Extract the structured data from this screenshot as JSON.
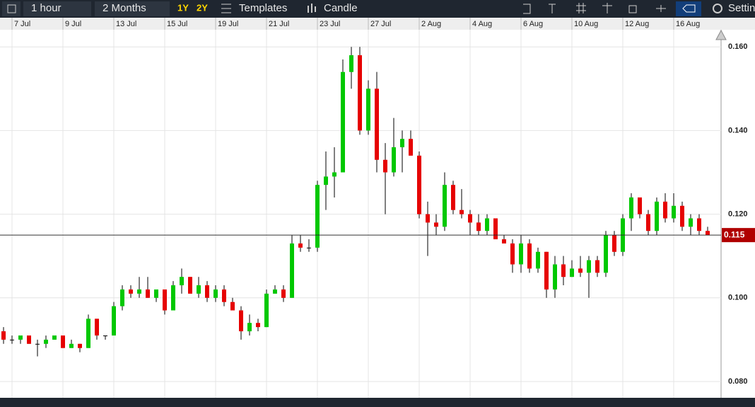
{
  "toolbar": {
    "items": [
      "1 hour",
      "2 Months",
      "1Y",
      "2Y",
      "Templates",
      "Candle",
      "Settin"
    ]
  },
  "chart_data": {
    "type": "candlestick",
    "categories": [
      null,
      "7 Jul",
      null,
      null,
      null,
      null,
      null,
      "9 Jul",
      null,
      null,
      null,
      null,
      null,
      "13 Jul",
      null,
      null,
      null,
      null,
      null,
      "15 Jul",
      null,
      null,
      null,
      null,
      null,
      "19 Jul",
      null,
      null,
      null,
      null,
      null,
      "21 Jul",
      null,
      null,
      null,
      null,
      null,
      "23 Jul",
      null,
      null,
      null,
      null,
      null,
      "27 Jul",
      null,
      null,
      null,
      null,
      null,
      "2 Aug",
      null,
      null,
      null,
      null,
      null,
      "4 Aug",
      null,
      null,
      null,
      null,
      null,
      "6 Aug",
      null,
      null,
      null,
      null,
      null,
      "10 Aug",
      null,
      null,
      null,
      null,
      null,
      "12 Aug",
      null,
      null,
      null,
      null,
      null,
      "16 Aug",
      null,
      null,
      null,
      null
    ],
    "open": [
      0.092,
      0.09,
      0.09,
      0.091,
      0.089,
      0.089,
      0.09,
      0.091,
      0.088,
      0.089,
      0.088,
      0.095,
      0.091,
      0.091,
      0.098,
      0.102,
      0.101,
      0.102,
      0.1,
      0.102,
      0.097,
      0.103,
      0.105,
      0.101,
      0.103,
      0.1,
      0.102,
      0.099,
      0.097,
      0.092,
      0.094,
      0.093,
      0.101,
      0.102,
      0.1,
      0.113,
      0.112,
      0.112,
      0.127,
      0.129,
      0.13,
      0.154,
      0.158,
      0.14,
      0.15,
      0.133,
      0.13,
      0.136,
      0.138,
      0.134,
      0.12,
      0.118,
      0.117,
      0.127,
      0.121,
      0.12,
      0.118,
      0.116,
      0.119,
      0.114,
      0.113,
      0.108,
      0.113,
      0.107,
      0.111,
      0.102,
      0.108,
      0.105,
      0.107,
      0.106,
      0.109,
      0.106,
      0.115,
      0.111,
      0.119,
      0.124,
      0.12,
      0.116,
      0.123,
      0.119,
      0.122,
      0.117,
      0.119,
      0.116
    ],
    "high": [
      0.093,
      0.091,
      0.091,
      0.091,
      0.09,
      0.091,
      0.091,
      0.091,
      0.09,
      0.089,
      0.096,
      0.095,
      0.091,
      0.099,
      0.103,
      0.103,
      0.105,
      0.105,
      0.102,
      0.102,
      0.104,
      0.107,
      0.105,
      0.105,
      0.104,
      0.103,
      0.103,
      0.1,
      0.098,
      0.096,
      0.095,
      0.102,
      0.103,
      0.103,
      0.115,
      0.115,
      0.114,
      0.128,
      0.135,
      0.136,
      0.157,
      0.16,
      0.16,
      0.152,
      0.154,
      0.137,
      0.143,
      0.14,
      0.14,
      0.135,
      0.123,
      0.12,
      0.13,
      0.128,
      0.126,
      0.121,
      0.12,
      0.12,
      0.119,
      0.115,
      0.114,
      0.115,
      0.114,
      0.112,
      0.111,
      0.11,
      0.11,
      0.109,
      0.11,
      0.11,
      0.11,
      0.116,
      0.116,
      0.12,
      0.125,
      0.124,
      0.121,
      0.124,
      0.125,
      0.125,
      0.123,
      0.12,
      0.12,
      0.117
    ],
    "low": [
      0.089,
      0.089,
      0.089,
      0.089,
      0.086,
      0.088,
      0.09,
      0.088,
      0.088,
      0.087,
      0.088,
      0.09,
      0.09,
      0.091,
      0.097,
      0.1,
      0.1,
      0.1,
      0.099,
      0.096,
      0.097,
      0.101,
      0.101,
      0.1,
      0.099,
      0.099,
      0.098,
      0.097,
      0.09,
      0.091,
      0.092,
      0.093,
      0.101,
      0.099,
      0.1,
      0.111,
      0.111,
      0.111,
      0.121,
      0.124,
      0.13,
      0.15,
      0.139,
      0.139,
      0.13,
      0.12,
      0.129,
      0.13,
      0.134,
      0.119,
      0.11,
      0.115,
      0.116,
      0.12,
      0.119,
      0.115,
      0.115,
      0.115,
      0.114,
      0.113,
      0.106,
      0.106,
      0.106,
      0.106,
      0.1,
      0.1,
      0.103,
      0.105,
      0.105,
      0.1,
      0.105,
      0.105,
      0.11,
      0.11,
      0.116,
      0.119,
      0.115,
      0.115,
      0.118,
      0.118,
      0.116,
      0.115,
      0.115,
      0.115
    ],
    "close": [
      0.09,
      0.09,
      0.091,
      0.089,
      0.089,
      0.09,
      0.091,
      0.088,
      0.089,
      0.088,
      0.095,
      0.091,
      0.091,
      0.098,
      0.102,
      0.101,
      0.102,
      0.1,
      0.102,
      0.097,
      0.103,
      0.105,
      0.101,
      0.103,
      0.1,
      0.102,
      0.099,
      0.097,
      0.092,
      0.094,
      0.093,
      0.101,
      0.102,
      0.1,
      0.113,
      0.112,
      0.112,
      0.127,
      0.129,
      0.13,
      0.154,
      0.158,
      0.14,
      0.15,
      0.133,
      0.13,
      0.136,
      0.138,
      0.134,
      0.12,
      0.118,
      0.117,
      0.127,
      0.121,
      0.12,
      0.118,
      0.116,
      0.119,
      0.114,
      0.113,
      0.108,
      0.113,
      0.107,
      0.111,
      0.102,
      0.108,
      0.105,
      0.107,
      0.106,
      0.109,
      0.106,
      0.115,
      0.111,
      0.119,
      0.124,
      0.12,
      0.116,
      0.123,
      0.119,
      0.122,
      0.117,
      0.119,
      0.116,
      0.115
    ],
    "up_color": "#00c800",
    "down_color": "#e60000",
    "ylim": [
      0.0761,
      0.1641
    ],
    "yticks": [
      {
        "value": 0.08,
        "label": "0.080"
      },
      {
        "value": 0.1,
        "label": "0.100"
      },
      {
        "value": 0.12,
        "label": "0.120"
      },
      {
        "value": 0.14,
        "label": "0.140"
      },
      {
        "value": 0.16,
        "label": "0.160"
      }
    ],
    "last_price": 0.115,
    "grid": true
  }
}
